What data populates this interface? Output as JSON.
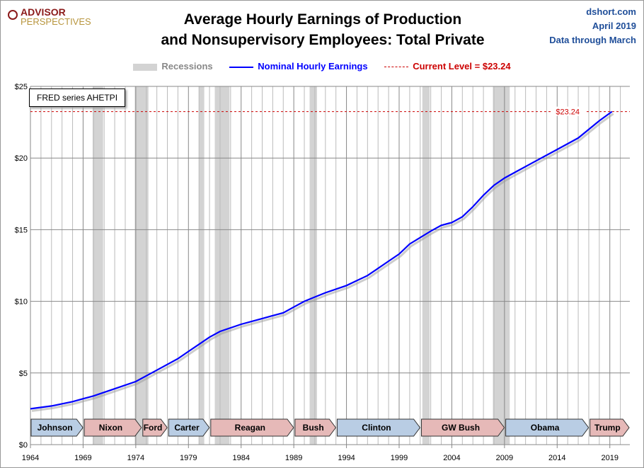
{
  "logo": {
    "line1": "ADVISOR",
    "line2": "PERSPECTIVES"
  },
  "source": {
    "site": "dshort.com",
    "date": "April 2019",
    "note": "Data through March"
  },
  "note_box": "FRED series AHETPI",
  "chart_data": {
    "type": "line",
    "title": "Average Hourly Earnings of Production and Nonsupervisory Employees: Total Private",
    "title_lines": [
      "Average Hourly Earnings of Production",
      "and Nonsupervisory Employees: Total Private"
    ],
    "legend": [
      {
        "label": "Recessions",
        "color": "#d3d3d3"
      },
      {
        "label": "Nominal Hourly Earnings",
        "color": "#0000ff"
      },
      {
        "label": "Current Level = $23.24",
        "color": "#cc0000"
      }
    ],
    "xlim": [
      1964,
      2020.9
    ],
    "ylim": [
      0,
      25
    ],
    "x_ticks": [
      "1964",
      "1969",
      "1974",
      "1979",
      "1984",
      "1989",
      "1994",
      "1999",
      "2004",
      "2009",
      "2014",
      "2019"
    ],
    "y_ticks": [
      "$0",
      "$5",
      "$10",
      "$15",
      "$20",
      "$25"
    ],
    "grid": true,
    "current_level": {
      "value": 23.24,
      "label": "$23.24"
    },
    "series": [
      {
        "name": "Nominal Hourly Earnings",
        "color": "#0000ff",
        "x": [
          1964,
          1966,
          1968,
          1969,
          1970,
          1972,
          1974,
          1976,
          1978,
          1979,
          1980,
          1981,
          1982,
          1984,
          1986,
          1988,
          1989,
          1990,
          1991,
          1992,
          1994,
          1996,
          1998,
          1999,
          2000,
          2002,
          2003,
          2004,
          2005,
          2006,
          2007,
          2008,
          2009,
          2010,
          2012,
          2014,
          2016,
          2018,
          2019.2
        ],
        "y": [
          2.5,
          2.7,
          3.0,
          3.2,
          3.4,
          3.9,
          4.4,
          5.2,
          6.0,
          6.5,
          7.0,
          7.5,
          7.9,
          8.4,
          8.8,
          9.2,
          9.6,
          10.0,
          10.3,
          10.6,
          11.1,
          11.8,
          12.8,
          13.3,
          14.0,
          14.9,
          15.3,
          15.5,
          15.9,
          16.6,
          17.4,
          18.1,
          18.6,
          19.0,
          19.8,
          20.6,
          21.4,
          22.6,
          23.24
        ]
      }
    ],
    "recessions": [
      [
        1969.9,
        1970.9
      ],
      [
        1973.9,
        1975.2
      ],
      [
        1980.0,
        1980.5
      ],
      [
        1981.5,
        1982.9
      ],
      [
        1990.5,
        1991.2
      ],
      [
        2001.2,
        2001.9
      ],
      [
        2007.9,
        2009.5
      ]
    ],
    "presidents": [
      {
        "name": "Johnson",
        "start": 1964,
        "end": 1969.05,
        "party": "D"
      },
      {
        "name": "Nixon",
        "start": 1969.05,
        "end": 1974.6,
        "party": "R"
      },
      {
        "name": "Ford",
        "start": 1974.6,
        "end": 1977.05,
        "party": "R"
      },
      {
        "name": "Carter",
        "start": 1977.05,
        "end": 1981.05,
        "party": "D"
      },
      {
        "name": "Reagan",
        "start": 1981.05,
        "end": 1989.05,
        "party": "R"
      },
      {
        "name": "Bush",
        "start": 1989.05,
        "end": 1993.05,
        "party": "R"
      },
      {
        "name": "Clinton",
        "start": 1993.05,
        "end": 2001.05,
        "party": "D"
      },
      {
        "name": "GW Bush",
        "start": 2001.05,
        "end": 2009.05,
        "party": "R"
      },
      {
        "name": "Obama",
        "start": 2009.05,
        "end": 2017.05,
        "party": "D"
      },
      {
        "name": "Trump",
        "start": 2017.05,
        "end": 2020.9,
        "party": "R"
      }
    ],
    "party_colors": {
      "D": "#b9cde4",
      "R": "#e6b9b8"
    }
  }
}
